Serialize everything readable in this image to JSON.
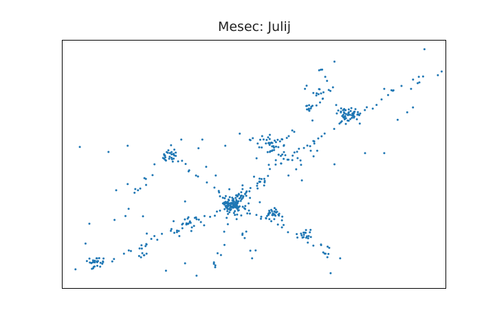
{
  "chart_data": {
    "type": "scatter",
    "title": "Mesec: Julij",
    "xlabel": "",
    "ylabel": "",
    "axes_visible": false,
    "grid": false,
    "marker_color": "#1f77b4",
    "xlim": [
      0,
      100
    ],
    "ylim": [
      0,
      100
    ],
    "seed": 7,
    "clusters": [
      {
        "x": 44.5,
        "y": 34.0,
        "n": 110,
        "spread": 1.8
      },
      {
        "x": 55.0,
        "y": 30.0,
        "n": 30,
        "spread": 1.3
      },
      {
        "x": 75.0,
        "y": 70.0,
        "n": 50,
        "spread": 1.5
      },
      {
        "x": 55.0,
        "y": 58.0,
        "n": 28,
        "spread": 1.6
      },
      {
        "x": 28.0,
        "y": 54.0,
        "n": 22,
        "spread": 1.2
      },
      {
        "x": 8.5,
        "y": 10.5,
        "n": 24,
        "spread": 1.2
      },
      {
        "x": 67.5,
        "y": 78.0,
        "n": 15,
        "spread": 2.0
      },
      {
        "x": 34.5,
        "y": 27.0,
        "n": 12,
        "spread": 1.5
      },
      {
        "x": 63.5,
        "y": 22.0,
        "n": 10,
        "spread": 1.2
      },
      {
        "x": 21.0,
        "y": 14.0,
        "n": 8,
        "spread": 1.0
      },
      {
        "x": 64.0,
        "y": 73.0,
        "n": 12,
        "spread": 1.2
      },
      {
        "x": 60.5,
        "y": 53.5,
        "n": 10,
        "spread": 1.6
      }
    ],
    "roads": [
      {
        "from": [
          44.5,
          34.0
        ],
        "to": [
          74.0,
          69.0
        ],
        "n": 40
      },
      {
        "from": [
          44.5,
          34.0
        ],
        "to": [
          8.0,
          8.0
        ],
        "n": 28
      },
      {
        "from": [
          44.5,
          34.0
        ],
        "to": [
          27.5,
          54.5
        ],
        "n": 18
      },
      {
        "from": [
          44.5,
          34.0
        ],
        "to": [
          70.0,
          16.0
        ],
        "n": 22
      },
      {
        "from": [
          44.5,
          34.0
        ],
        "to": [
          39.0,
          6.0
        ],
        "n": 14
      },
      {
        "from": [
          44.5,
          34.0
        ],
        "to": [
          57.0,
          54.0
        ],
        "n": 14
      },
      {
        "from": [
          74.0,
          69.0
        ],
        "to": [
          96.0,
          87.0
        ],
        "n": 14
      },
      {
        "from": [
          74.0,
          69.0
        ],
        "to": [
          67.0,
          90.0
        ],
        "n": 10
      },
      {
        "from": [
          55.0,
          58.0
        ],
        "to": [
          67.0,
          70.0
        ],
        "n": 12
      },
      {
        "from": [
          55.0,
          58.0
        ],
        "to": [
          46.0,
          62.0
        ],
        "n": 8
      },
      {
        "from": [
          27.5,
          54.5
        ],
        "to": [
          14.0,
          26.0
        ],
        "n": 12
      },
      {
        "from": [
          44.5,
          34.0
        ],
        "to": [
          20.0,
          18.0
        ],
        "n": 14
      },
      {
        "from": [
          55.0,
          30.0
        ],
        "to": [
          70.0,
          12.0
        ],
        "n": 12
      },
      {
        "from": [
          44.5,
          34.0
        ],
        "to": [
          50.0,
          12.0
        ],
        "n": 10
      }
    ],
    "points": [
      [
        4.5,
        57.0
      ],
      [
        94.5,
        96.5
      ],
      [
        71.0,
        91.5
      ],
      [
        99.0,
        87.5
      ],
      [
        98.0,
        86.0
      ],
      [
        91.0,
        80.5
      ],
      [
        84.0,
        80.5
      ],
      [
        82.0,
        74.0
      ],
      [
        47.0,
        41.5
      ],
      [
        50.0,
        45.0
      ],
      [
        62.5,
        43.5
      ],
      [
        59.0,
        45.5
      ],
      [
        32.0,
        35.0
      ],
      [
        17.0,
        42.0
      ],
      [
        19.0,
        40.0
      ],
      [
        14.0,
        39.5
      ],
      [
        17.0,
        57.5
      ],
      [
        12.0,
        55.0
      ],
      [
        7.0,
        26.0
      ],
      [
        6.0,
        18.0
      ],
      [
        36.5,
        60.0
      ],
      [
        42.5,
        57.5
      ],
      [
        85.0,
        78.0
      ],
      [
        81.0,
        72.5
      ],
      [
        67.0,
        88.0
      ],
      [
        47.0,
        40.0
      ],
      [
        70.0,
        6.0
      ],
      [
        72.5,
        12.0
      ],
      [
        32.0,
        10.0
      ],
      [
        35.0,
        5.0
      ],
      [
        27.0,
        7.0
      ],
      [
        31.0,
        60.0
      ],
      [
        35.5,
        56.5
      ],
      [
        37.5,
        49.0
      ],
      [
        40.0,
        45.5
      ],
      [
        24.0,
        50.0
      ],
      [
        21.0,
        29.0
      ],
      [
        22.0,
        22.0
      ],
      [
        29.0,
        27.0
      ],
      [
        30.5,
        21.0
      ],
      [
        47.0,
        22.0
      ],
      [
        49.5,
        12.0
      ],
      [
        71.0,
        50.0
      ],
      [
        79.0,
        54.5
      ],
      [
        84.0,
        54.5
      ],
      [
        87.5,
        68.0
      ],
      [
        90.0,
        71.0
      ],
      [
        91.5,
        73.0
      ],
      [
        66.5,
        55.5
      ],
      [
        61.0,
        48.0
      ]
    ]
  }
}
